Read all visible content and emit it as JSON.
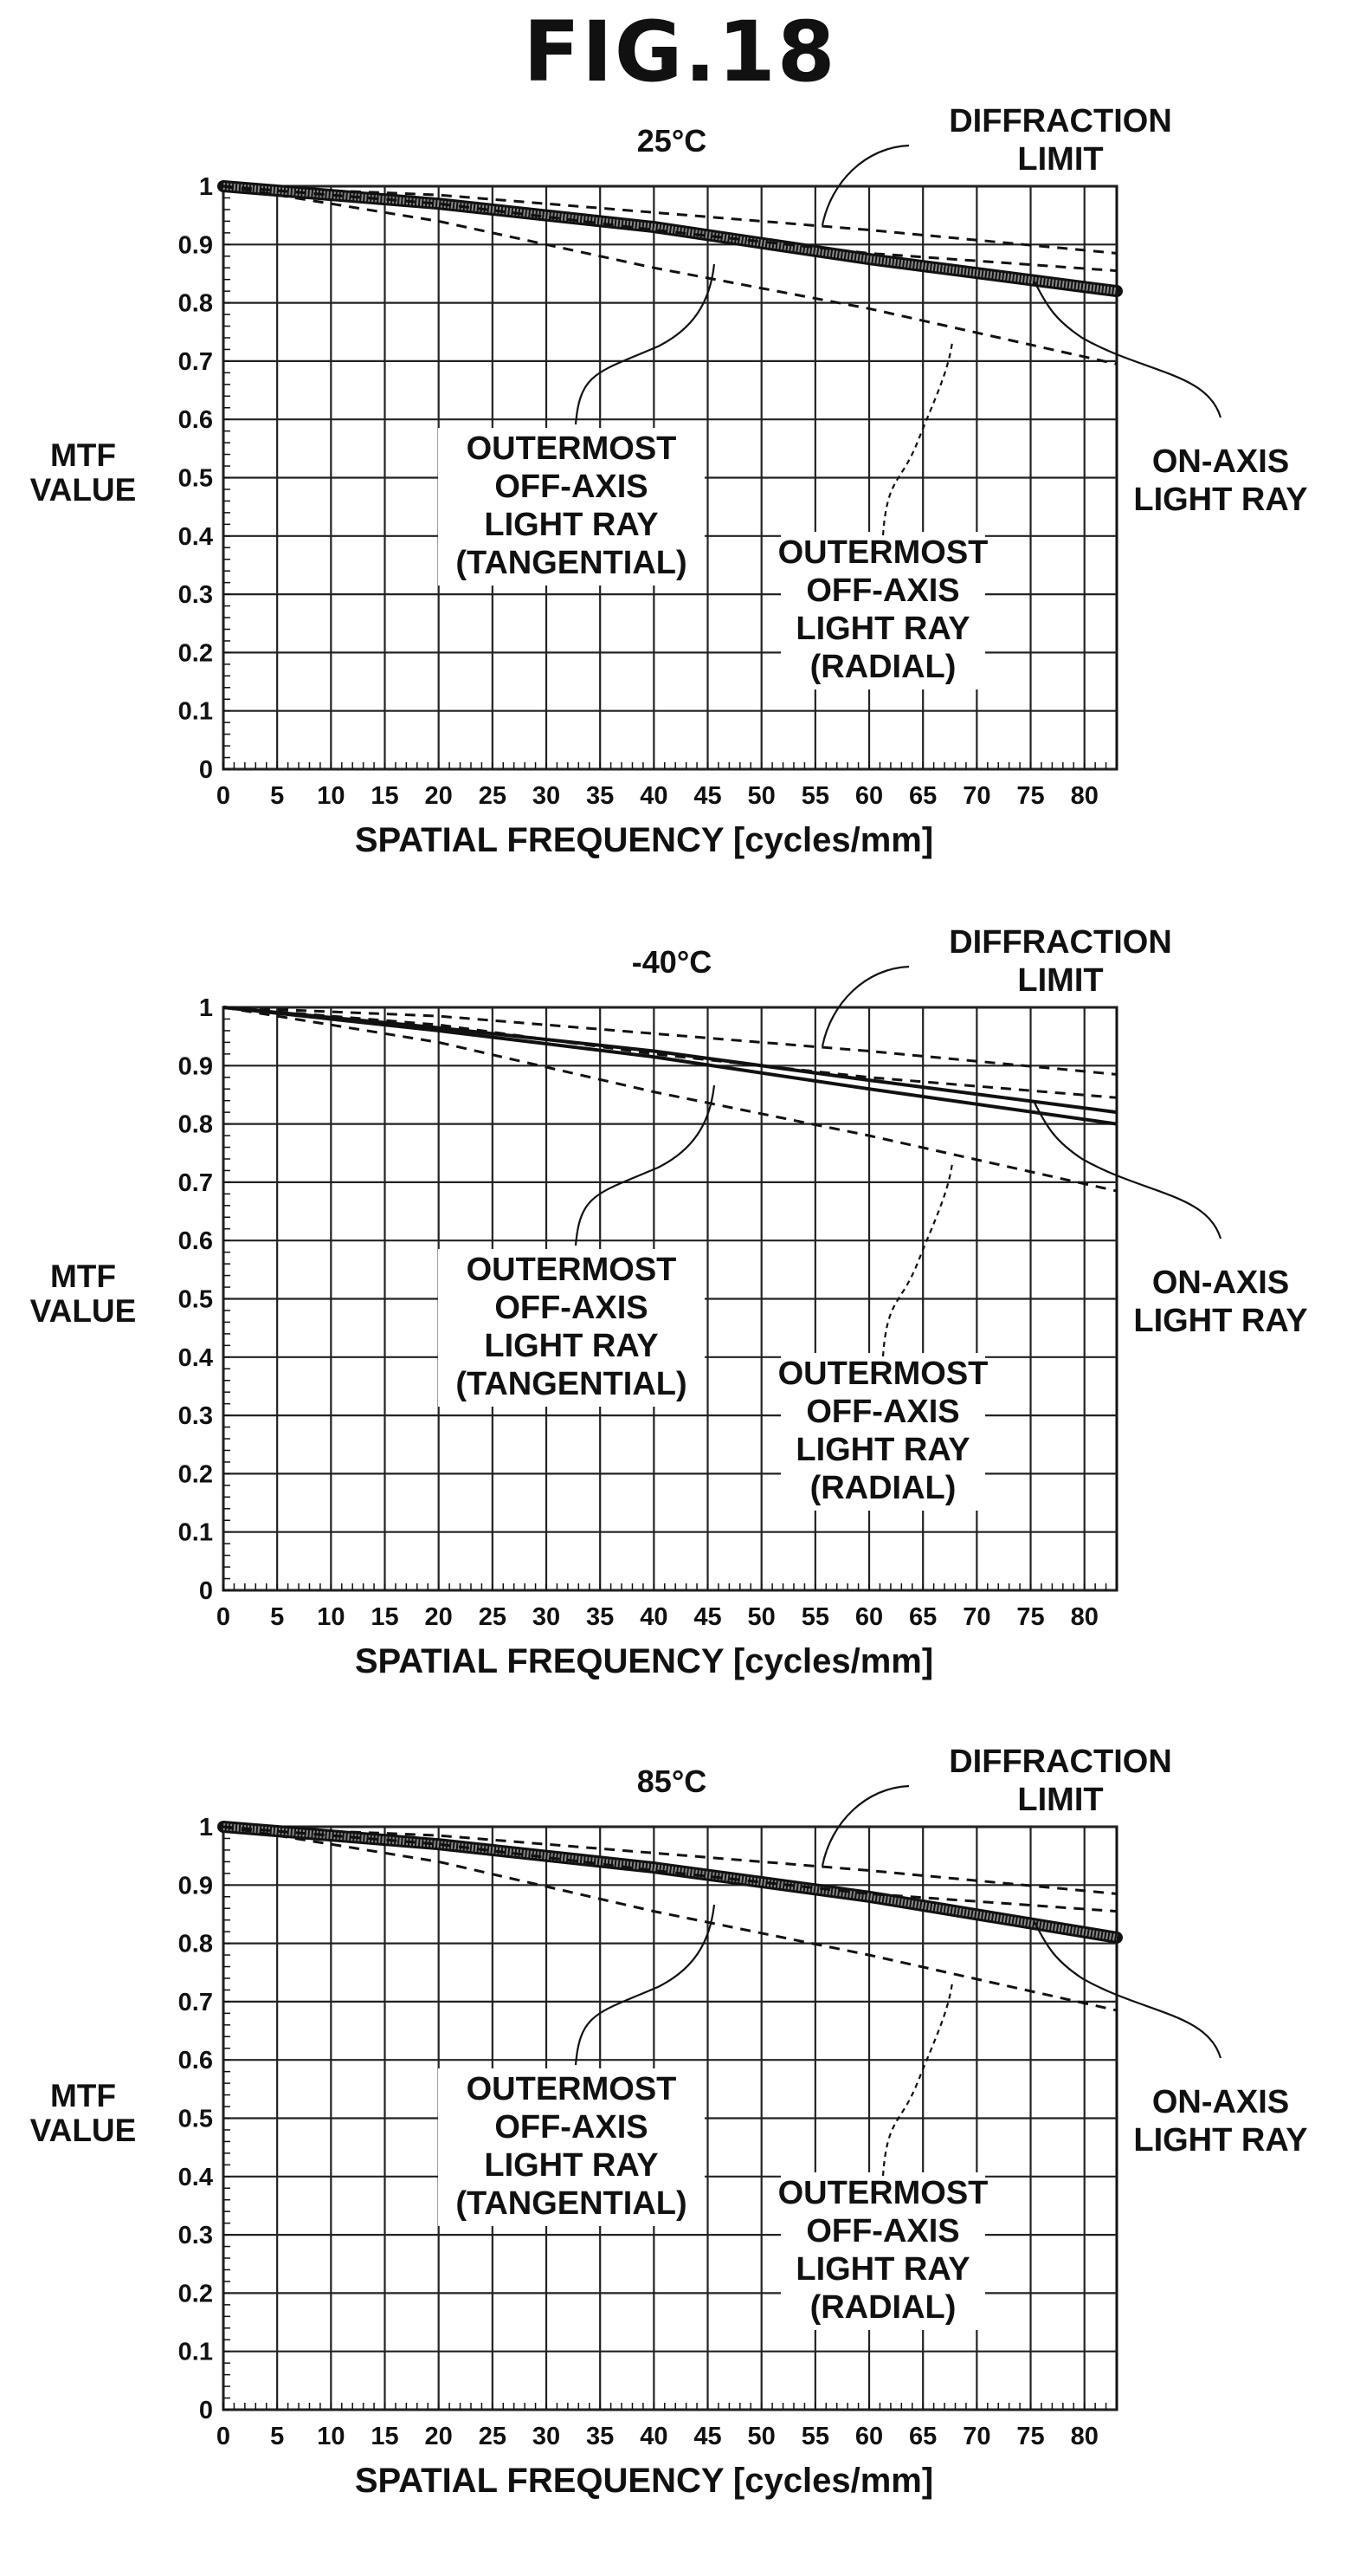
{
  "figure_title": "FIG.18",
  "chart_data": [
    {
      "type": "line",
      "title": "25°C",
      "xlabel": "SPATIAL FREQUENCY [cycles/mm]",
      "ylabel": [
        "MTF",
        "VALUE"
      ],
      "xlim": [
        0,
        83
      ],
      "ylim": [
        0,
        1
      ],
      "x_ticks": [
        "0",
        "5",
        "10",
        "15",
        "20",
        "25",
        "30",
        "35",
        "40",
        "45",
        "50",
        "55",
        "60",
        "65",
        "70",
        "75",
        "80"
      ],
      "y_ticks": [
        "0",
        "0.1",
        "0.2",
        "0.3",
        "0.4",
        "0.5",
        "0.6",
        "0.7",
        "0.8",
        "0.9",
        "1"
      ],
      "grid": true,
      "series": [
        {
          "name": "DIFFRACTION LIMIT",
          "style": "dashed",
          "x": [
            0,
            20,
            40,
            60,
            83
          ],
          "y": [
            1.0,
            0.985,
            0.955,
            0.925,
            0.885
          ]
        },
        {
          "name": "ON-AXIS LIGHT RAY",
          "style": "thick",
          "x": [
            0,
            20,
            40,
            60,
            83
          ],
          "y": [
            1.0,
            0.97,
            0.93,
            0.875,
            0.82
          ]
        },
        {
          "name": "OUTERMOST OFF-AXIS LIGHT RAY (TANGENTIAL)",
          "style": "dashed",
          "x": [
            0,
            20,
            40,
            60,
            83
          ],
          "y": [
            1.0,
            0.97,
            0.925,
            0.885,
            0.855
          ]
        },
        {
          "name": "OUTERMOST OFF-AXIS LIGHT RAY (RADIAL)",
          "style": "dashed",
          "x": [
            0,
            20,
            40,
            60,
            83
          ],
          "y": [
            1.0,
            0.94,
            0.86,
            0.79,
            0.695
          ]
        }
      ],
      "annotations": [
        {
          "lines": [
            "DIFFRACTION",
            "LIMIT"
          ]
        },
        {
          "lines": [
            "ON-AXIS",
            "LIGHT RAY"
          ]
        },
        {
          "lines": [
            "OUTERMOST",
            "OFF-AXIS",
            "LIGHT RAY",
            "(TANGENTIAL)"
          ]
        },
        {
          "lines": [
            "OUTERMOST",
            "OFF-AXIS",
            "LIGHT RAY",
            "(RADIAL)"
          ]
        }
      ]
    },
    {
      "type": "line",
      "title": "-40°C",
      "xlabel": "SPATIAL FREQUENCY [cycles/mm]",
      "ylabel": [
        "MTF",
        "VALUE"
      ],
      "xlim": [
        0,
        83
      ],
      "ylim": [
        0,
        1
      ],
      "x_ticks": [
        "0",
        "5",
        "10",
        "15",
        "20",
        "25",
        "30",
        "35",
        "40",
        "45",
        "50",
        "55",
        "60",
        "65",
        "70",
        "75",
        "80"
      ],
      "y_ticks": [
        "0",
        "0.1",
        "0.2",
        "0.3",
        "0.4",
        "0.5",
        "0.6",
        "0.7",
        "0.8",
        "0.9",
        "1"
      ],
      "grid": true,
      "series": [
        {
          "name": "DIFFRACTION LIMIT",
          "style": "dashed",
          "x": [
            0,
            20,
            40,
            60,
            83
          ],
          "y": [
            1.0,
            0.985,
            0.955,
            0.925,
            0.885
          ]
        },
        {
          "name": "ON-AXIS LIGHT RAY",
          "style": "solid",
          "x": [
            0,
            20,
            40,
            60,
            83
          ],
          "y": [
            1.0,
            0.965,
            0.925,
            0.875,
            0.82
          ]
        },
        {
          "name": "ON-AXIS LIGHT RAY",
          "style": "solid",
          "x": [
            0,
            20,
            40,
            60,
            83
          ],
          "y": [
            1.0,
            0.96,
            0.915,
            0.86,
            0.8
          ]
        },
        {
          "name": "OUTERMOST OFF-AXIS LIGHT RAY (TANGENTIAL)",
          "style": "dashed",
          "x": [
            0,
            20,
            40,
            60,
            83
          ],
          "y": [
            1.0,
            0.97,
            0.92,
            0.88,
            0.845
          ]
        },
        {
          "name": "OUTERMOST OFF-AXIS LIGHT RAY (RADIAL)",
          "style": "dashed",
          "x": [
            0,
            20,
            40,
            60,
            83
          ],
          "y": [
            1.0,
            0.94,
            0.855,
            0.78,
            0.685
          ]
        }
      ],
      "annotations": [
        {
          "lines": [
            "DIFFRACTION",
            "LIMIT"
          ]
        },
        {
          "lines": [
            "ON-AXIS",
            "LIGHT RAY"
          ]
        },
        {
          "lines": [
            "OUTERMOST",
            "OFF-AXIS",
            "LIGHT RAY",
            "(TANGENTIAL)"
          ]
        },
        {
          "lines": [
            "OUTERMOST",
            "OFF-AXIS",
            "LIGHT RAY",
            "(RADIAL)"
          ]
        }
      ]
    },
    {
      "type": "line",
      "title": "85°C",
      "xlabel": "SPATIAL FREQUENCY [cycles/mm]",
      "ylabel": [
        "MTF",
        "VALUE"
      ],
      "xlim": [
        0,
        83
      ],
      "ylim": [
        0,
        1
      ],
      "x_ticks": [
        "0",
        "5",
        "10",
        "15",
        "20",
        "25",
        "30",
        "35",
        "40",
        "45",
        "50",
        "55",
        "60",
        "65",
        "70",
        "75",
        "80"
      ],
      "y_ticks": [
        "0",
        "0.1",
        "0.2",
        "0.3",
        "0.4",
        "0.5",
        "0.6",
        "0.7",
        "0.8",
        "0.9",
        "1"
      ],
      "grid": true,
      "series": [
        {
          "name": "DIFFRACTION LIMIT",
          "style": "dashed",
          "x": [
            0,
            20,
            40,
            60,
            83
          ],
          "y": [
            1.0,
            0.985,
            0.955,
            0.925,
            0.885
          ]
        },
        {
          "name": "ON-AXIS LIGHT RAY",
          "style": "thick",
          "x": [
            0,
            20,
            40,
            60,
            83
          ],
          "y": [
            1.0,
            0.97,
            0.93,
            0.88,
            0.81
          ]
        },
        {
          "name": "OUTERMOST OFF-AXIS LIGHT RAY (TANGENTIAL)",
          "style": "dashed",
          "x": [
            0,
            20,
            40,
            60,
            83
          ],
          "y": [
            1.0,
            0.97,
            0.925,
            0.885,
            0.855
          ]
        },
        {
          "name": "OUTERMOST OFF-AXIS LIGHT RAY (RADIAL)",
          "style": "dashed",
          "x": [
            0,
            20,
            40,
            60,
            83
          ],
          "y": [
            1.0,
            0.94,
            0.855,
            0.78,
            0.685
          ]
        }
      ],
      "annotations": [
        {
          "lines": [
            "DIFFRACTION",
            "LIMIT"
          ]
        },
        {
          "lines": [
            "ON-AXIS",
            "LIGHT RAY"
          ]
        },
        {
          "lines": [
            "OUTERMOST",
            "OFF-AXIS",
            "LIGHT RAY",
            "(TANGENTIAL)"
          ]
        },
        {
          "lines": [
            "OUTERMOST",
            "OFF-AXIS",
            "LIGHT RAY",
            "(RADIAL)"
          ]
        }
      ]
    }
  ]
}
